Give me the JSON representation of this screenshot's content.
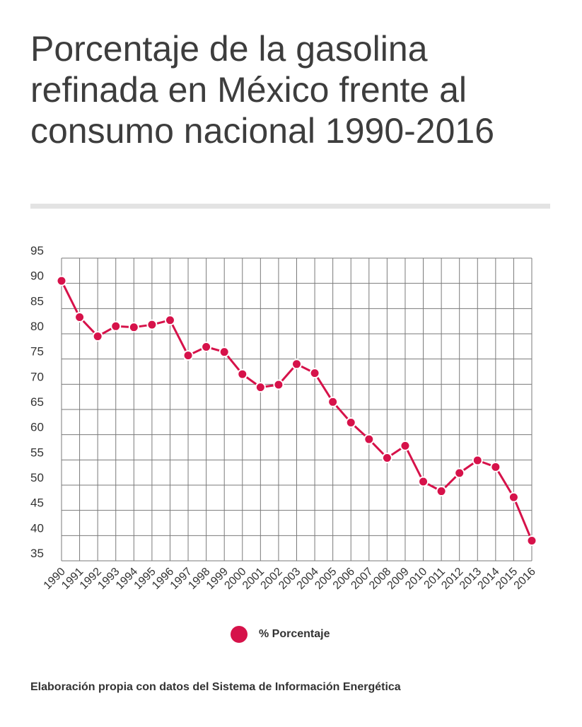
{
  "header": {
    "title": "Porcentaje de la gasolina refinada en México frente al consumo nacional 1990-2016"
  },
  "footer": {
    "source": "Elaboración propia con datos del Sistema de Información Energética"
  },
  "colors": {
    "series": "#d6124a",
    "grid": "#7a7a7a",
    "text": "#333333"
  },
  "chart_data": {
    "type": "line",
    "title": "Porcentaje de la gasolina refinada en México frente al consumo nacional 1990-2016",
    "xlabel": "",
    "ylabel": "",
    "ylim": [
      35,
      95
    ],
    "yticks": [
      95,
      90,
      85,
      80,
      75,
      70,
      65,
      60,
      55,
      50,
      45,
      40,
      35
    ],
    "grid": true,
    "legend_position": "bottom-center",
    "categories": [
      "1990",
      "1991",
      "1992",
      "1993",
      "1994",
      "1995",
      "1996",
      "1997",
      "1998",
      "1999",
      "2000",
      "2001",
      "2002",
      "2003",
      "2004",
      "2005",
      "2006",
      "2007",
      "2008",
      "2009",
      "2010",
      "2011",
      "2012",
      "2013",
      "2014",
      "2015",
      "2016"
    ],
    "series": [
      {
        "name": "% Porcentaje",
        "color": "#d6124a",
        "values": [
          90.5,
          83.3,
          79.5,
          81.5,
          81.3,
          81.8,
          82.7,
          75.7,
          77.4,
          76.4,
          72.0,
          69.4,
          69.9,
          74.0,
          72.2,
          66.5,
          62.4,
          59.1,
          55.4,
          57.8,
          50.7,
          48.8,
          52.4,
          54.9,
          53.6,
          47.6,
          39.0
        ]
      }
    ]
  }
}
